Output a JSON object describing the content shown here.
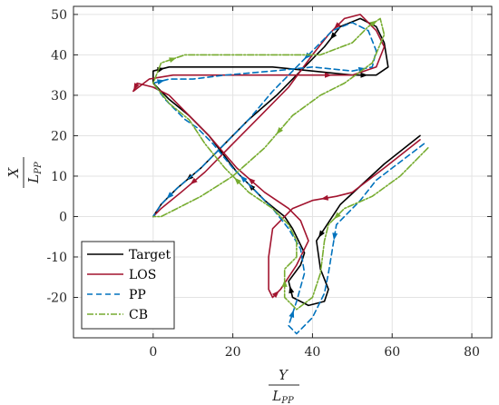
{
  "chart_data": {
    "type": "line",
    "title": "",
    "xlabel_num": "Y",
    "xlabel_den": "L",
    "xlabel_den_sub": "PP",
    "ylabel_num": "X",
    "ylabel_den": "L",
    "ylabel_den_sub": "PP",
    "xlim": [
      -20,
      85
    ],
    "ylim": [
      -30,
      52
    ],
    "xticks": [
      0,
      20,
      40,
      60,
      80
    ],
    "yticks": [
      -20,
      -10,
      0,
      10,
      20,
      30,
      40,
      50
    ],
    "grid": true,
    "legend_position": "bottom-left",
    "series": [
      {
        "name": "Target",
        "color": "#000000",
        "dash": "",
        "points": [
          [
            67,
            20
          ],
          [
            58,
            13
          ],
          [
            47,
            3
          ],
          [
            43,
            -3
          ],
          [
            41,
            -6
          ],
          [
            42,
            -13
          ],
          [
            44,
            -18
          ],
          [
            43,
            -21
          ],
          [
            39,
            -22
          ],
          [
            35,
            -20
          ],
          [
            34,
            -16
          ],
          [
            37,
            -12
          ],
          [
            38,
            -9
          ],
          [
            35,
            -3
          ],
          [
            33,
            0
          ],
          [
            28,
            4
          ],
          [
            21,
            11
          ],
          [
            14,
            20
          ],
          [
            9,
            25
          ],
          [
            4,
            29
          ],
          [
            0,
            33
          ],
          [
            0,
            36
          ],
          [
            4,
            37
          ],
          [
            12,
            37
          ],
          [
            20,
            37
          ],
          [
            30,
            37
          ],
          [
            40,
            36
          ],
          [
            50,
            35
          ],
          [
            56,
            35
          ],
          [
            59,
            37
          ],
          [
            58,
            43
          ],
          [
            56,
            47
          ],
          [
            52,
            49
          ],
          [
            47,
            47
          ],
          [
            43,
            42
          ],
          [
            38,
            37
          ],
          [
            31,
            30
          ],
          [
            24,
            24
          ],
          [
            18,
            18
          ],
          [
            12,
            12
          ],
          [
            6,
            7
          ],
          [
            2,
            3
          ],
          [
            0,
            0
          ]
        ]
      },
      {
        "name": "LOS",
        "color": "#a2142f",
        "dash": "",
        "points": [
          [
            67,
            19
          ],
          [
            58,
            12
          ],
          [
            50,
            6
          ],
          [
            46,
            5
          ],
          [
            40,
            4
          ],
          [
            35,
            2
          ],
          [
            30,
            -3
          ],
          [
            29,
            -10
          ],
          [
            29,
            -18
          ],
          [
            30,
            -20
          ],
          [
            32,
            -18
          ],
          [
            36,
            -12
          ],
          [
            39,
            -6
          ],
          [
            37,
            -1
          ],
          [
            34,
            2
          ],
          [
            28,
            6
          ],
          [
            21,
            12
          ],
          [
            14,
            20
          ],
          [
            8,
            26
          ],
          [
            4,
            30
          ],
          [
            0,
            32
          ],
          [
            -4,
            33
          ],
          [
            -5,
            31
          ],
          [
            -1,
            34
          ],
          [
            5,
            35
          ],
          [
            14,
            35
          ],
          [
            25,
            35
          ],
          [
            38,
            35
          ],
          [
            50,
            35
          ],
          [
            56,
            37
          ],
          [
            58,
            42
          ],
          [
            56,
            46
          ],
          [
            52,
            50
          ],
          [
            48,
            49
          ],
          [
            44,
            45
          ],
          [
            40,
            40
          ],
          [
            34,
            32
          ],
          [
            27,
            25
          ],
          [
            20,
            18
          ],
          [
            13,
            11
          ],
          [
            7,
            6
          ],
          [
            2,
            2
          ],
          [
            0,
            0
          ]
        ]
      },
      {
        "name": "PP",
        "color": "#0072bd",
        "dash": "6,4",
        "points": [
          [
            68,
            18
          ],
          [
            56,
            9
          ],
          [
            52,
            4
          ],
          [
            46,
            -2
          ],
          [
            45,
            -8
          ],
          [
            44,
            -14
          ],
          [
            43,
            -19
          ],
          [
            40,
            -25
          ],
          [
            36,
            -29
          ],
          [
            34,
            -27
          ],
          [
            36,
            -21
          ],
          [
            38,
            -14
          ],
          [
            37,
            -8
          ],
          [
            34,
            -3
          ],
          [
            30,
            2
          ],
          [
            25,
            7
          ],
          [
            20,
            12
          ],
          [
            15,
            18
          ],
          [
            11,
            22
          ],
          [
            8,
            24
          ],
          [
            3,
            29
          ],
          [
            0,
            33
          ],
          [
            4,
            34
          ],
          [
            10,
            34
          ],
          [
            18,
            35
          ],
          [
            30,
            36
          ],
          [
            40,
            37
          ],
          [
            50,
            36
          ],
          [
            55,
            37
          ],
          [
            56,
            41
          ],
          [
            54,
            46
          ],
          [
            50,
            48
          ],
          [
            45,
            46
          ],
          [
            41,
            42
          ],
          [
            36,
            37
          ],
          [
            30,
            31
          ],
          [
            24,
            24
          ],
          [
            18,
            18
          ],
          [
            12,
            12
          ],
          [
            6,
            7
          ],
          [
            2,
            3
          ],
          [
            0,
            0
          ]
        ]
      },
      {
        "name": "CB",
        "color": "#77ac30",
        "dash": "7,2,2,2",
        "points": [
          [
            69,
            17
          ],
          [
            62,
            10
          ],
          [
            55,
            5
          ],
          [
            48,
            2
          ],
          [
            44,
            -2
          ],
          [
            43,
            -6
          ],
          [
            42,
            -14
          ],
          [
            40,
            -20
          ],
          [
            36,
            -23
          ],
          [
            33,
            -20
          ],
          [
            33,
            -13
          ],
          [
            36,
            -10
          ],
          [
            36,
            -6
          ],
          [
            34,
            -2
          ],
          [
            30,
            2
          ],
          [
            24,
            6
          ],
          [
            18,
            12
          ],
          [
            13,
            18
          ],
          [
            9,
            24
          ],
          [
            4,
            28
          ],
          [
            0,
            33
          ],
          [
            2,
            38
          ],
          [
            8,
            40
          ],
          [
            18,
            40
          ],
          [
            30,
            40
          ],
          [
            42,
            40
          ],
          [
            50,
            43
          ],
          [
            54,
            47
          ],
          [
            57,
            49
          ],
          [
            58,
            45
          ],
          [
            55,
            38
          ],
          [
            48,
            33
          ],
          [
            42,
            30
          ],
          [
            35,
            25
          ],
          [
            28,
            17
          ],
          [
            20,
            10
          ],
          [
            12,
            5
          ],
          [
            6,
            2
          ],
          [
            2,
            0
          ],
          [
            0,
            0
          ]
        ]
      }
    ]
  }
}
